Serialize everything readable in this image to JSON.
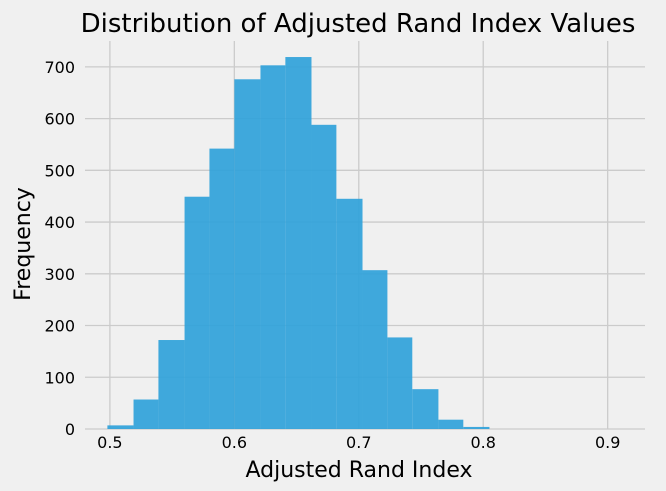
{
  "chart_data": {
    "type": "bar",
    "title": "Distribution of Adjusted Rand Index Values",
    "xlabel": "Adjusted Rand Index",
    "ylabel": "Frequency",
    "xlim": [
      0.48,
      0.93
    ],
    "ylim": [
      0,
      750
    ],
    "xticks": [
      0.5,
      0.6,
      0.7,
      0.8,
      0.9
    ],
    "xtick_labels": [
      "0.5",
      "0.6",
      "0.7",
      "0.8",
      "0.9"
    ],
    "yticks": [
      0,
      100,
      200,
      300,
      400,
      500,
      600,
      700
    ],
    "ytick_labels": [
      "0",
      "100",
      "200",
      "300",
      "400",
      "500",
      "600",
      "700"
    ],
    "grid": true,
    "bar_color": "#30a2da",
    "bins": [
      {
        "x0": 0.498,
        "x1": 0.519,
        "count": 7
      },
      {
        "x0": 0.519,
        "x1": 0.539,
        "count": 57
      },
      {
        "x0": 0.539,
        "x1": 0.56,
        "count": 172
      },
      {
        "x0": 0.56,
        "x1": 0.58,
        "count": 449
      },
      {
        "x0": 0.58,
        "x1": 0.6,
        "count": 542
      },
      {
        "x0": 0.6,
        "x1": 0.621,
        "count": 676
      },
      {
        "x0": 0.621,
        "x1": 0.641,
        "count": 703
      },
      {
        "x0": 0.641,
        "x1": 0.662,
        "count": 719
      },
      {
        "x0": 0.662,
        "x1": 0.682,
        "count": 588
      },
      {
        "x0": 0.682,
        "x1": 0.703,
        "count": 445
      },
      {
        "x0": 0.703,
        "x1": 0.723,
        "count": 307
      },
      {
        "x0": 0.723,
        "x1": 0.743,
        "count": 177
      },
      {
        "x0": 0.743,
        "x1": 0.764,
        "count": 77
      },
      {
        "x0": 0.764,
        "x1": 0.784,
        "count": 18
      },
      {
        "x0": 0.784,
        "x1": 0.805,
        "count": 4
      }
    ]
  }
}
